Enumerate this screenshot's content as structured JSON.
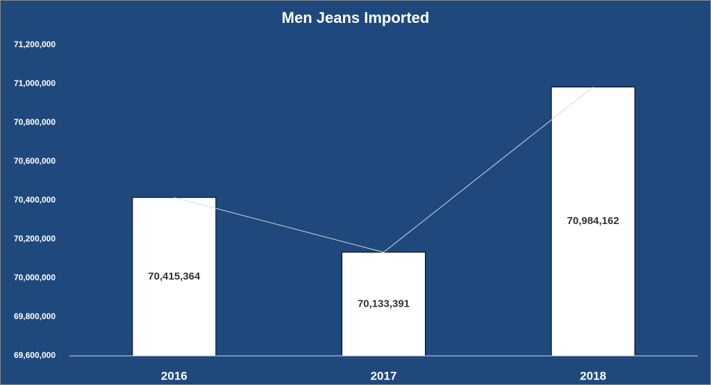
{
  "chart_data": {
    "type": "bar",
    "title": "Men Jeans Imported",
    "categories": [
      "2016",
      "2017",
      "2018"
    ],
    "values": [
      70415364,
      70133391,
      70984162
    ],
    "value_labels": [
      "70,415,364",
      "70,133,391",
      "70,984,162"
    ],
    "color": "#ffffff",
    "ylim": [
      69600000,
      71200000
    ],
    "yticks": [
      {
        "value": 69600000,
        "label": "69,600,000"
      },
      {
        "value": 69800000,
        "label": "69,800,000"
      },
      {
        "value": 70000000,
        "label": "70,000,000"
      },
      {
        "value": 70200000,
        "label": "70,200,000"
      },
      {
        "value": 70400000,
        "label": "70,400,000"
      },
      {
        "value": 70600000,
        "label": "70,600,000"
      },
      {
        "value": 70800000,
        "label": "70,800,000"
      },
      {
        "value": 71000000,
        "label": "71,000,000"
      },
      {
        "value": 71200000,
        "label": "71,200,000"
      }
    ],
    "grid": false
  }
}
